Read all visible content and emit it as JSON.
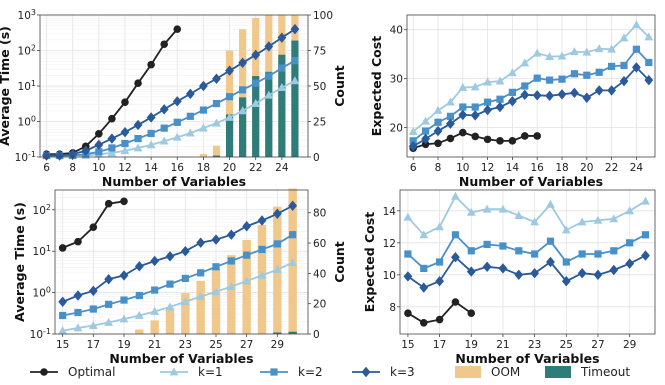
{
  "legend": [
    {
      "label": "Optimal",
      "color": "#222222",
      "marker": "circle",
      "kind": "line"
    },
    {
      "label": "k=1",
      "color": "#9ecae1",
      "marker": "triangle",
      "kind": "line"
    },
    {
      "label": "k=2",
      "color": "#4a90c8",
      "marker": "square",
      "kind": "line"
    },
    {
      "label": "k=3",
      "color": "#2a5a9a",
      "marker": "diamond",
      "kind": "line"
    },
    {
      "label": "OOM",
      "color": "#f0c88c",
      "kind": "bar"
    },
    {
      "label": "Timeout",
      "color": "#2e7d7a",
      "kind": "bar"
    }
  ],
  "chart_data": [
    {
      "type": "line",
      "panel": "top-left",
      "xlabel": "Number of Variables",
      "ylabel": "Average Time (s)",
      "y2label": "Count",
      "xlim": [
        5.5,
        26
      ],
      "ylim": [
        0.1,
        1000
      ],
      "yscale": "log",
      "y2lim": [
        0,
        100
      ],
      "xticks": [
        6,
        8,
        10,
        12,
        14,
        16,
        18,
        20,
        22,
        24
      ],
      "yticks": [
        0.1,
        1,
        10,
        100,
        1000
      ],
      "ytick_labels": [
        "10^-1",
        "10^0",
        "10^1",
        "10^2",
        "10^3"
      ],
      "y2ticks": [
        0,
        25,
        50,
        75,
        100
      ],
      "grid": true,
      "series": [
        {
          "name": "Optimal",
          "x": [
            6,
            7,
            8,
            9,
            10,
            11,
            12,
            13,
            14,
            15,
            16
          ],
          "values": [
            0.12,
            0.12,
            0.13,
            0.2,
            0.45,
            1.2,
            3.5,
            12,
            40,
            150,
            400
          ]
        },
        {
          "name": "k=1",
          "x": [
            6,
            7,
            8,
            9,
            10,
            11,
            12,
            13,
            14,
            15,
            16,
            17,
            18,
            19,
            20,
            21,
            22,
            23,
            24,
            25
          ],
          "values": [
            0.11,
            0.11,
            0.11,
            0.11,
            0.12,
            0.13,
            0.15,
            0.18,
            0.22,
            0.28,
            0.36,
            0.47,
            0.65,
            0.9,
            1.3,
            2.0,
            3.2,
            5.5,
            9,
            14
          ]
        },
        {
          "name": "k=2",
          "x": [
            6,
            7,
            8,
            9,
            10,
            11,
            12,
            13,
            14,
            15,
            16,
            17,
            18,
            19,
            20,
            21,
            22,
            23,
            24,
            25
          ],
          "values": [
            0.11,
            0.11,
            0.11,
            0.12,
            0.14,
            0.18,
            0.24,
            0.33,
            0.46,
            0.65,
            0.95,
            1.4,
            2.1,
            3.2,
            5,
            7.8,
            12,
            19,
            32,
            52
          ]
        },
        {
          "name": "k=3",
          "x": [
            6,
            7,
            8,
            9,
            10,
            11,
            12,
            13,
            14,
            15,
            16,
            17,
            18,
            19,
            20,
            21,
            22,
            23,
            24,
            25
          ],
          "values": [
            0.11,
            0.11,
            0.12,
            0.15,
            0.22,
            0.33,
            0.5,
            0.8,
            1.3,
            2.2,
            3.7,
            6,
            10,
            16,
            27,
            45,
            75,
            130,
            230,
            400
          ]
        }
      ],
      "bars": [
        {
          "name": "OOM",
          "x": [
            18,
            19,
            20,
            21,
            22,
            23,
            24,
            25
          ],
          "values": [
            2,
            8,
            75,
            90,
            98,
            100,
            100,
            100
          ]
        },
        {
          "name": "Timeout",
          "x": [
            19,
            20,
            21,
            22,
            23,
            24,
            25
          ],
          "values": [
            1,
            30,
            42,
            57,
            60,
            72,
            82
          ]
        }
      ]
    },
    {
      "type": "line",
      "panel": "top-right",
      "xlabel": "Number of Variables",
      "ylabel": "Expected Cost",
      "xlim": [
        5.5,
        25.5
      ],
      "ylim": [
        14,
        43
      ],
      "xticks": [
        6,
        8,
        10,
        12,
        14,
        16,
        18,
        20,
        22,
        24
      ],
      "yticks": [
        20,
        30,
        40
      ],
      "grid": true,
      "series": [
        {
          "name": "Optimal",
          "x": [
            6,
            7,
            8,
            9,
            10,
            11,
            12,
            13,
            14,
            15,
            16
          ],
          "values": [
            15.8,
            16.6,
            16.8,
            17.8,
            19,
            18.2,
            17.6,
            17.3,
            17.3,
            18.3,
            18.3
          ]
        },
        {
          "name": "k=1",
          "x": [
            6,
            7,
            8,
            9,
            10,
            11,
            12,
            13,
            14,
            15,
            16,
            17,
            18,
            19,
            20,
            21,
            22,
            23,
            24,
            25
          ],
          "values": [
            19.2,
            21.3,
            23.5,
            25.2,
            28.2,
            28.3,
            29.3,
            29.5,
            31.2,
            33.2,
            35.2,
            34.5,
            34.6,
            35.5,
            35.4,
            36.1,
            36,
            38.3,
            41,
            38.5
          ]
        },
        {
          "name": "k=2",
          "x": [
            6,
            7,
            8,
            9,
            10,
            11,
            12,
            13,
            14,
            15,
            16,
            17,
            18,
            19,
            20,
            21,
            22,
            23,
            24,
            25
          ],
          "values": [
            17.3,
            19.3,
            21.1,
            22.3,
            24.2,
            24.2,
            25.2,
            25.8,
            27.2,
            28.5,
            30.1,
            29.7,
            29.9,
            31,
            30.7,
            31.3,
            32.5,
            32.7,
            36,
            33.3
          ]
        },
        {
          "name": "k=3",
          "x": [
            6,
            7,
            8,
            9,
            10,
            11,
            12,
            13,
            14,
            15,
            16,
            17,
            18,
            19,
            20,
            21,
            22,
            23,
            24,
            25
          ],
          "values": [
            16.2,
            17.7,
            19.3,
            20.8,
            22.6,
            22.5,
            23.6,
            24.2,
            25.4,
            26.7,
            26.6,
            26.5,
            26.8,
            27.1,
            26.1,
            27.6,
            27.6,
            29.5,
            32.3,
            29.7
          ]
        }
      ]
    },
    {
      "type": "line",
      "panel": "bottom-left",
      "xlabel": "Number of Variables",
      "ylabel": "Average Time (s)",
      "y2label": "Count",
      "xlim": [
        14.5,
        31
      ],
      "ylim": [
        0.1,
        300
      ],
      "yscale": "log",
      "y2lim": [
        0,
        95
      ],
      "xticks": [
        15,
        17,
        19,
        21,
        23,
        25,
        27,
        29
      ],
      "yticks": [
        0.1,
        1,
        10,
        100
      ],
      "ytick_labels": [
        "10^-1",
        "10^0",
        "10^1",
        "10^2"
      ],
      "y2ticks": [
        0,
        20,
        40,
        60,
        80
      ],
      "grid": true,
      "series": [
        {
          "name": "Optimal",
          "x": [
            15,
            16,
            17,
            18,
            19
          ],
          "values": [
            12,
            17,
            38,
            140,
            160
          ]
        },
        {
          "name": "k=1",
          "x": [
            15,
            16,
            17,
            18,
            19,
            20,
            21,
            22,
            23,
            24,
            25,
            26,
            27,
            28,
            29,
            30
          ],
          "values": [
            0.12,
            0.14,
            0.16,
            0.19,
            0.23,
            0.28,
            0.35,
            0.45,
            0.6,
            0.8,
            1.05,
            1.4,
            1.9,
            2.6,
            3.6,
            5.3
          ]
        },
        {
          "name": "k=2",
          "x": [
            15,
            16,
            17,
            18,
            19,
            20,
            21,
            22,
            23,
            24,
            25,
            26,
            27,
            28,
            29,
            30
          ],
          "values": [
            0.28,
            0.33,
            0.4,
            0.52,
            0.66,
            0.85,
            1.15,
            1.6,
            2.2,
            3.0,
            4.2,
            5.8,
            8,
            11,
            15,
            25
          ]
        },
        {
          "name": "k=3",
          "x": [
            15,
            16,
            17,
            18,
            19,
            20,
            21,
            22,
            23,
            24,
            25,
            26,
            27,
            28,
            29,
            30
          ],
          "values": [
            0.6,
            0.85,
            1.1,
            2.1,
            2.6,
            4.3,
            5.8,
            7.5,
            10,
            16,
            19,
            25,
            40,
            55,
            80,
            125
          ]
        }
      ],
      "bars": [
        {
          "name": "OOM",
          "x": [
            20,
            21,
            22,
            23,
            24,
            25,
            26,
            27,
            28,
            29,
            30
          ],
          "values": [
            3,
            9,
            17,
            27,
            35,
            43,
            52,
            62,
            72,
            84,
            96
          ]
        },
        {
          "name": "Timeout",
          "x": [
            29,
            30
          ],
          "values": [
            1,
            1.5
          ]
        }
      ]
    },
    {
      "type": "line",
      "panel": "bottom-right",
      "xlabel": "Number of Variables",
      "ylabel": "Expected Cost",
      "xlim": [
        14.5,
        30.6
      ],
      "ylim": [
        6.3,
        15.3
      ],
      "xticks": [
        15,
        17,
        19,
        21,
        23,
        25,
        27,
        29
      ],
      "yticks": [
        8,
        10,
        12,
        14
      ],
      "grid": true,
      "series": [
        {
          "name": "Optimal",
          "x": [
            15,
            16,
            17,
            18,
            19
          ],
          "values": [
            7.6,
            7.0,
            7.2,
            8.3,
            7.6
          ]
        },
        {
          "name": "k=1",
          "x": [
            15,
            16,
            17,
            18,
            19,
            20,
            21,
            22,
            23,
            24,
            25,
            26,
            27,
            28,
            29,
            30
          ],
          "values": [
            13.6,
            12.5,
            13.0,
            14.9,
            13.9,
            14.1,
            14.1,
            13.7,
            13.3,
            14.4,
            12.8,
            13.3,
            13.4,
            13.5,
            14.0,
            14.6
          ]
        },
        {
          "name": "k=2",
          "x": [
            15,
            16,
            17,
            18,
            19,
            20,
            21,
            22,
            23,
            24,
            25,
            26,
            27,
            28,
            29,
            30
          ],
          "values": [
            11.3,
            10.4,
            10.8,
            12.5,
            11.5,
            11.9,
            11.8,
            11.5,
            11.3,
            12.1,
            10.8,
            11.3,
            11.3,
            11.5,
            12.0,
            12.5
          ]
        },
        {
          "name": "k=3",
          "x": [
            15,
            16,
            17,
            18,
            19,
            20,
            21,
            22,
            23,
            24,
            25,
            26,
            27,
            28,
            29,
            30
          ],
          "values": [
            9.9,
            9.2,
            9.6,
            11.1,
            10.2,
            10.5,
            10.4,
            10.0,
            10.1,
            10.8,
            9.6,
            10.1,
            10.0,
            10.3,
            10.7,
            11.2
          ]
        }
      ]
    }
  ]
}
